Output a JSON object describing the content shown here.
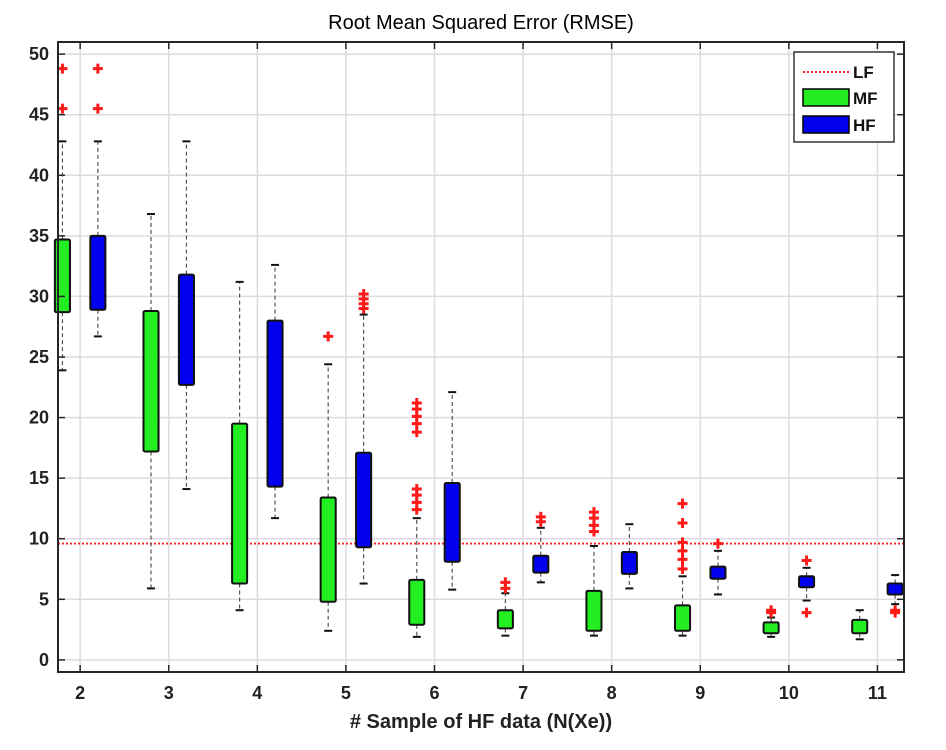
{
  "chart_data": {
    "type": "box",
    "title": "Root Mean Squared Error (RMSE)",
    "xlabel": "# Sample of HF data (N(Xe))",
    "ylabel": "",
    "xlim": [
      1.75,
      11.3
    ],
    "ylim": [
      -1,
      51
    ],
    "xticks": [
      2,
      3,
      4,
      5,
      6,
      7,
      8,
      9,
      10,
      11
    ],
    "yticks": [
      0,
      5,
      10,
      15,
      20,
      25,
      30,
      35,
      40,
      45,
      50
    ],
    "grid": true,
    "legend_position": "top-right",
    "reference_line": {
      "name": "LF",
      "y": 9.6,
      "color": "#ff2020",
      "style": "dotted"
    },
    "series": [
      {
        "name": "MF",
        "color": "#22ee22",
        "offset": -0.2,
        "boxes": [
          {
            "x": 2,
            "whisker_low": 23.9,
            "q1": 28.7,
            "q3": 34.7,
            "whisker_high": 42.8,
            "outliers": [
              45.5,
              48.8
            ]
          },
          {
            "x": 3,
            "whisker_low": 5.9,
            "q1": 17.2,
            "q3": 28.8,
            "whisker_high": 36.8,
            "outliers": []
          },
          {
            "x": 4,
            "whisker_low": 4.1,
            "q1": 6.3,
            "q3": 19.5,
            "whisker_high": 31.2,
            "outliers": []
          },
          {
            "x": 5,
            "whisker_low": 2.4,
            "q1": 4.8,
            "q3": 13.4,
            "whisker_high": 24.4,
            "outliers": [
              26.7
            ]
          },
          {
            "x": 6,
            "whisker_low": 1.9,
            "q1": 2.9,
            "q3": 6.6,
            "whisker_high": 11.7,
            "outliers": [
              12.4,
              13.0,
              13.6,
              14.1,
              18.8,
              19.5,
              20.1,
              20.7,
              21.2
            ]
          },
          {
            "x": 7,
            "whisker_low": 2.0,
            "q1": 2.6,
            "q3": 4.1,
            "whisker_high": 5.5,
            "outliers": [
              5.9,
              6.4
            ]
          },
          {
            "x": 8,
            "whisker_low": 2.0,
            "q1": 2.4,
            "q3": 5.7,
            "whisker_high": 9.4,
            "outliers": [
              10.6,
              11.1,
              11.7,
              12.2
            ]
          },
          {
            "x": 9,
            "whisker_low": 2.0,
            "q1": 2.4,
            "q3": 4.5,
            "whisker_high": 6.9,
            "outliers": [
              7.5,
              8.3,
              9.0,
              9.7,
              11.3,
              12.9
            ]
          },
          {
            "x": 10,
            "whisker_low": 1.9,
            "q1": 2.2,
            "q3": 3.1,
            "whisker_high": 3.5,
            "outliers": [
              3.9,
              4.1
            ]
          },
          {
            "x": 11,
            "whisker_low": 1.7,
            "q1": 2.2,
            "q3": 3.3,
            "whisker_high": 4.1,
            "outliers": []
          }
        ]
      },
      {
        "name": "HF",
        "color": "#0000ee",
        "offset": 0.2,
        "boxes": [
          {
            "x": 2,
            "whisker_low": 26.7,
            "q1": 28.9,
            "q3": 35.0,
            "whisker_high": 42.8,
            "outliers": [
              45.5,
              48.8
            ]
          },
          {
            "x": 3,
            "whisker_low": 14.1,
            "q1": 22.7,
            "q3": 31.8,
            "whisker_high": 42.8,
            "outliers": []
          },
          {
            "x": 4,
            "whisker_low": 11.7,
            "q1": 14.3,
            "q3": 28.0,
            "whisker_high": 32.6,
            "outliers": []
          },
          {
            "x": 5,
            "whisker_low": 6.3,
            "q1": 9.3,
            "q3": 17.1,
            "whisker_high": 28.5,
            "outliers": [
              29.0,
              29.4,
              29.8,
              30.2
            ]
          },
          {
            "x": 6,
            "whisker_low": 5.8,
            "q1": 8.1,
            "q3": 14.6,
            "whisker_high": 22.1,
            "outliers": []
          },
          {
            "x": 7,
            "whisker_low": 6.4,
            "q1": 7.2,
            "q3": 8.6,
            "whisker_high": 10.9,
            "outliers": [
              11.4,
              11.8
            ]
          },
          {
            "x": 8,
            "whisker_low": 5.9,
            "q1": 7.1,
            "q3": 8.9,
            "whisker_high": 11.2,
            "outliers": []
          },
          {
            "x": 9,
            "whisker_low": 5.4,
            "q1": 6.7,
            "q3": 7.7,
            "whisker_high": 9.0,
            "outliers": [
              9.6
            ]
          },
          {
            "x": 10,
            "whisker_low": 4.9,
            "q1": 6.0,
            "q3": 6.9,
            "whisker_high": 7.6,
            "outliers": [
              3.9,
              8.2
            ]
          },
          {
            "x": 11,
            "whisker_low": 4.6,
            "q1": 5.4,
            "q3": 6.3,
            "whisker_high": 7.0,
            "outliers": [
              3.9,
              4.1
            ]
          }
        ]
      }
    ]
  }
}
